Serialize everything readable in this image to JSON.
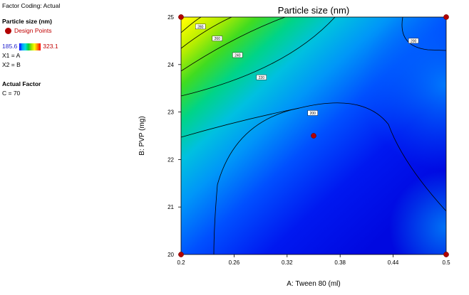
{
  "legend_panel": {
    "coding": "Factor Coding: Actual",
    "response_title": "Particle size (nm)",
    "design_points_label": "Design Points",
    "scale_min": "185.6",
    "scale_max": "323.1",
    "x1_line": "X1 = A",
    "x2_line": "X2 = B",
    "actual_factor_title": "Actual Factor",
    "actual_factor_value": "C = 70"
  },
  "colors": {
    "design_point": "#b20000",
    "low": "#0000ff",
    "high": "#ff0000"
  },
  "chart_data": {
    "type": "contour",
    "title": "Particle size (nm)",
    "xlabel": "A: Tween 80 (ml)",
    "ylabel": "B: PVP (mg)",
    "xlim": [
      0.2,
      0.5
    ],
    "ylim": [
      20,
      25
    ],
    "xticks": [
      "0.2",
      "0.26",
      "0.32",
      "0.38",
      "0.44",
      "0.5"
    ],
    "yticks": [
      "20",
      "21",
      "22",
      "23",
      "24",
      "25"
    ],
    "color_range": [
      185.6,
      323.1
    ],
    "contour_levels": [
      200,
      220,
      240,
      260,
      280
    ],
    "contour_labels": [
      {
        "text": "280",
        "x": 0.222,
        "y": 24.8
      },
      {
        "text": "260",
        "x": 0.241,
        "y": 24.55
      },
      {
        "text": "240",
        "x": 0.264,
        "y": 24.2
      },
      {
        "text": "220",
        "x": 0.291,
        "y": 23.73
      },
      {
        "text": "200",
        "x": 0.349,
        "y": 22.98
      },
      {
        "text": "200",
        "x": 0.463,
        "y": 24.5
      }
    ],
    "design_points": [
      {
        "x": 0.2,
        "y": 20
      },
      {
        "x": 0.2,
        "y": 25
      },
      {
        "x": 0.5,
        "y": 20
      },
      {
        "x": 0.5,
        "y": 25
      },
      {
        "x": 0.35,
        "y": 22.5
      }
    ]
  }
}
